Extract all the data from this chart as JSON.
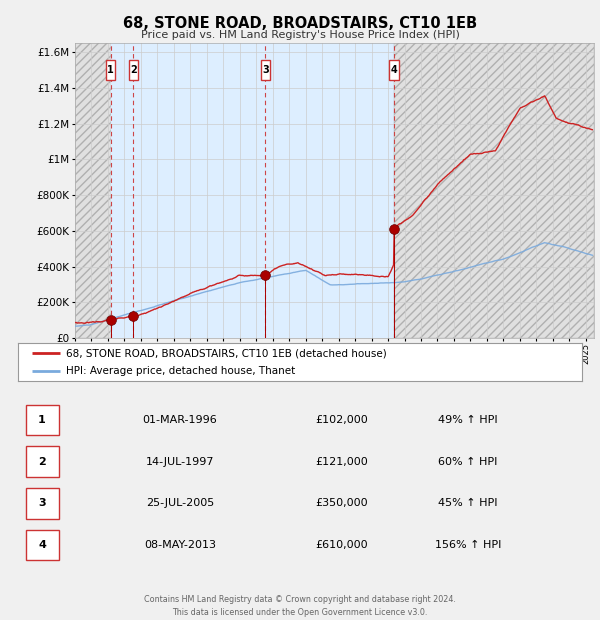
{
  "title": "68, STONE ROAD, BROADSTAIRS, CT10 1EB",
  "subtitle": "Price paid vs. HM Land Registry's House Price Index (HPI)",
  "ylim": [
    0,
    1650000
  ],
  "yticks": [
    0,
    200000,
    400000,
    600000,
    800000,
    1000000,
    1200000,
    1400000,
    1600000
  ],
  "ytick_labels": [
    "£0",
    "£200K",
    "£400K",
    "£600K",
    "£800K",
    "£1M",
    "£1.2M",
    "£1.4M",
    "£1.6M"
  ],
  "xlim_start": 1994.0,
  "xlim_end": 2025.5,
  "background_color": "#f0f0f0",
  "plot_bg_color": "#ffffff",
  "grid_color": "#cccccc",
  "hpi_line_color": "#7aaadd",
  "price_line_color": "#cc2222",
  "sale_marker_color": "#aa0000",
  "sale_marker_size": 7,
  "dashed_vline_color": "#cc3333",
  "shaded_region_color": "#ddeeff",
  "hatch_color": "#c8c8c8",
  "footer_text": "Contains HM Land Registry data © Crown copyright and database right 2024.\nThis data is licensed under the Open Government Licence v3.0.",
  "sales": [
    {
      "num": 1,
      "date_year": 1996.17,
      "price": 102000,
      "label": "01-MAR-1996",
      "pct": "49%"
    },
    {
      "num": 2,
      "date_year": 1997.54,
      "price": 121000,
      "label": "14-JUL-1997",
      "pct": "60%"
    },
    {
      "num": 3,
      "date_year": 2005.56,
      "price": 350000,
      "label": "25-JUL-2005",
      "pct": "45%"
    },
    {
      "num": 4,
      "date_year": 2013.36,
      "price": 610000,
      "label": "08-MAY-2013",
      "pct": "156%"
    }
  ],
  "table_rows": [
    [
      "1",
      "01-MAR-1996",
      "£102,000",
      "49% ↑ HPI"
    ],
    [
      "2",
      "14-JUL-1997",
      "£121,000",
      "60% ↑ HPI"
    ],
    [
      "3",
      "25-JUL-2005",
      "£350,000",
      "45% ↑ HPI"
    ],
    [
      "4",
      "08-MAY-2013",
      "£610,000",
      "156% ↑ HPI"
    ]
  ],
  "legend_line1": "68, STONE ROAD, BROADSTAIRS, CT10 1EB (detached house)",
  "legend_line2": "HPI: Average price, detached house, Thanet"
}
